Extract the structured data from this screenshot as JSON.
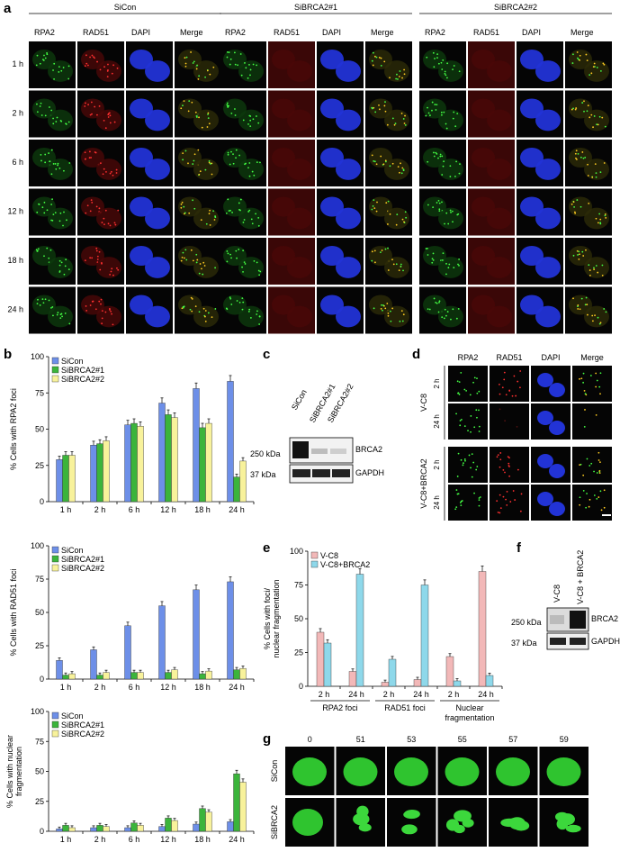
{
  "panel_letters": {
    "a": "a",
    "b": "b",
    "c": "c",
    "d": "d",
    "e": "e",
    "f": "f",
    "g": "g"
  },
  "panel_a": {
    "groups": [
      "SiCon",
      "SiBRCA2#1",
      "SiBRCA2#2"
    ],
    "channels": [
      "RPA2",
      "RAD51",
      "DAPI",
      "Merge"
    ],
    "rows": [
      "1 h",
      "2 h",
      "6 h",
      "12 h",
      "18 h",
      "24 h"
    ]
  },
  "legend": [
    "SiCon",
    "SiBRCA2#1",
    "SiBRCA2#2"
  ],
  "legend_e": [
    "V-C8",
    "V-C8+BRCA2"
  ],
  "colors": {
    "sicon": "#6d8fe8",
    "sibrca1": "#3bb43b",
    "sibrca2": "#f8f29b",
    "vc8": "#f2b8b8",
    "vc8brca2": "#8ed8ea"
  },
  "chart_data": [
    {
      "type": "bar",
      "title": "",
      "ylabel": "% Cells with RPA2 foci",
      "categories": [
        "1 h",
        "2 h",
        "6 h",
        "12 h",
        "18 h",
        "24 h"
      ],
      "ylim": [
        0,
        100
      ],
      "yticks": [
        0,
        25,
        50,
        75,
        100
      ],
      "series": [
        {
          "name": "SiCon",
          "values": [
            29,
            39,
            53,
            68,
            78,
            83
          ]
        },
        {
          "name": "SiBRCA2#1",
          "values": [
            32,
            40,
            54,
            60,
            51,
            17
          ]
        },
        {
          "name": "SiBRCA2#2",
          "values": [
            32,
            42,
            52,
            58,
            54,
            28
          ]
        }
      ]
    },
    {
      "type": "bar",
      "title": "",
      "ylabel": "% Cells with RAD51 foci",
      "categories": [
        "1 h",
        "2 h",
        "6 h",
        "12 h",
        "18 h",
        "24 h"
      ],
      "ylim": [
        0,
        100
      ],
      "yticks": [
        0,
        25,
        50,
        75,
        100
      ],
      "series": [
        {
          "name": "SiCon",
          "values": [
            14,
            22,
            40,
            55,
            67,
            73
          ]
        },
        {
          "name": "SiBRCA2#1",
          "values": [
            3,
            3,
            5,
            5,
            4,
            7
          ]
        },
        {
          "name": "SiBRCA2#2",
          "values": [
            4,
            5,
            5,
            7,
            6,
            8
          ]
        }
      ]
    },
    {
      "type": "bar",
      "title": "",
      "ylabel": "% Cells with nuclear fragmentation",
      "ylabel_lines": [
        "% Cells with nuclear",
        "fragmentation"
      ],
      "categories": [
        "1 h",
        "2 h",
        "6 h",
        "12 h",
        "18 h",
        "24 h"
      ],
      "ylim": [
        0,
        100
      ],
      "yticks": [
        0,
        25,
        50,
        75,
        100
      ],
      "series": [
        {
          "name": "SiCon",
          "values": [
            2,
            3,
            3,
            4,
            6,
            8
          ]
        },
        {
          "name": "SiBRCA2#1",
          "values": [
            5,
            5,
            7,
            11,
            19,
            48
          ]
        },
        {
          "name": "SiBRCA2#2",
          "values": [
            3,
            4,
            5,
            9,
            16,
            41
          ]
        }
      ]
    },
    {
      "type": "bar",
      "title": "",
      "ylabel": "% Cells with foci/ nuclear fragmentation",
      "ylabel_lines": [
        "% Cells with foci/",
        "nuclear fragmentation"
      ],
      "categories": [
        "2 h",
        "24 h",
        "2 h",
        "24 h",
        "2 h",
        "24 h"
      ],
      "groups": [
        "RPA2 foci",
        "RAD51 foci",
        "Nuclear",
        "fragmentation"
      ],
      "ylim": [
        0,
        100
      ],
      "yticks": [
        0,
        25,
        50,
        75,
        100
      ],
      "series": [
        {
          "name": "V-C8",
          "values": [
            40,
            11,
            3,
            5,
            22,
            85
          ]
        },
        {
          "name": "V-C8+BRCA2",
          "values": [
            32,
            83,
            20,
            75,
            4,
            8
          ]
        }
      ]
    }
  ],
  "panel_c": {
    "lanes": [
      "SiCon",
      "SiBRCA2#1",
      "SiBRCA2#2"
    ],
    "mw_top": "250 kDa",
    "mw_bot": "37 kDa",
    "band_top": "BRCA2",
    "band_bot": "GAPDH"
  },
  "panel_d": {
    "channels": [
      "RPA2",
      "RAD51",
      "DAPI",
      "Merge"
    ],
    "groups": [
      "V-C8",
      "V-C8+BRCA2"
    ],
    "rows": [
      "2 h",
      "24 h",
      "2 h",
      "24 h"
    ]
  },
  "panel_f": {
    "lanes": [
      "V-C8",
      "V-C8 + BRCA2"
    ],
    "mw_top": "250 kDa",
    "mw_bot": "37 kDa",
    "band_top": "BRCA2",
    "band_bot": "GAPDH"
  },
  "panel_g": {
    "times": [
      "0",
      "51",
      "53",
      "55",
      "57",
      "59"
    ],
    "rows": [
      "SiCon",
      "SiBRCA2"
    ]
  }
}
